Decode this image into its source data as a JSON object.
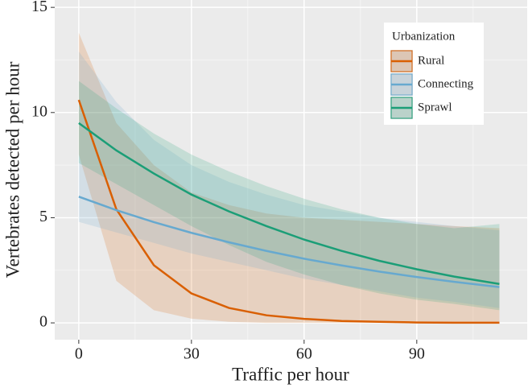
{
  "chart_data": {
    "type": "line",
    "xlabel": "Traffic per hour",
    "ylabel": "Vertebrates detected per hour",
    "x": [
      0,
      10,
      20,
      30,
      40,
      50,
      60,
      70,
      80,
      90,
      100,
      112
    ],
    "series": [
      {
        "name": "Rural",
        "color": "#d95f02",
        "values": [
          10.6,
          5.4,
          2.74,
          1.4,
          0.71,
          0.36,
          0.19,
          0.09,
          0.05,
          0.02,
          0.01,
          0.01
        ],
        "lower": [
          8,
          2,
          0.6,
          0.2,
          0.05,
          0,
          0,
          0,
          0,
          0,
          0,
          0
        ],
        "upper": [
          13.8,
          9.5,
          7.5,
          6.2,
          5.6,
          5.2,
          5.0,
          4.9,
          4.8,
          4.7,
          4.6,
          4.5
        ]
      },
      {
        "name": "Connecting",
        "color": "#67a9cf",
        "values": [
          6.0,
          5.36,
          4.79,
          4.28,
          3.83,
          3.42,
          3.05,
          2.73,
          2.44,
          2.18,
          1.95,
          1.7
        ],
        "lower": [
          4.8,
          4.3,
          3.8,
          3.3,
          2.9,
          2.5,
          2.1,
          1.8,
          1.5,
          1.2,
          1.0,
          0.7
        ],
        "upper": [
          12.9,
          10.5,
          8.7,
          7.5,
          6.7,
          6.1,
          5.6,
          5.3,
          5.0,
          4.8,
          4.6,
          4.4
        ]
      },
      {
        "name": "Sprawl",
        "color": "#1b9e77",
        "values": [
          9.5,
          8.2,
          7.1,
          6.1,
          5.3,
          4.6,
          3.96,
          3.42,
          2.95,
          2.55,
          2.2,
          1.85
        ],
        "lower": [
          7.6,
          6.6,
          5.6,
          4.6,
          3.7,
          2.9,
          2.3,
          1.8,
          1.4,
          1.1,
          0.9,
          0.6
        ],
        "upper": [
          11.5,
          10.2,
          9.0,
          8.0,
          7.2,
          6.5,
          5.9,
          5.4,
          5.0,
          4.7,
          4.5,
          4.7
        ]
      }
    ],
    "xlim": [
      -6.4,
      119.4
    ],
    "xticks": [
      0,
      30,
      60,
      90
    ],
    "ylim": [
      -0.8,
      15.35
    ],
    "yticks": [
      0,
      5,
      10,
      15
    ],
    "grid": true,
    "legend_title": "Urbanization",
    "legend_position": "top-right"
  }
}
